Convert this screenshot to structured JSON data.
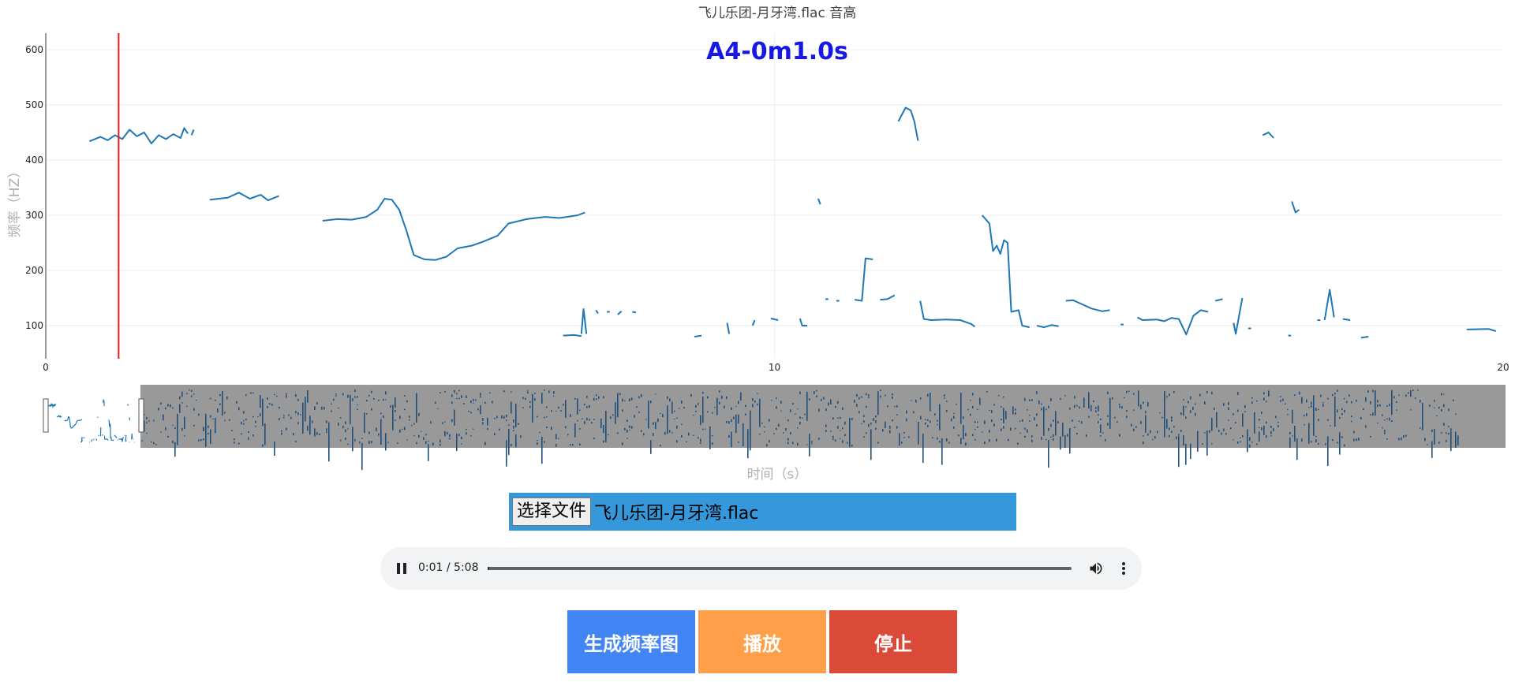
{
  "chart_data": {
    "type": "line",
    "title": "飞儿乐团-月牙湾.flac 音高",
    "current_note": "A4-0m1.0s",
    "xlabel": "时间（s）",
    "ylabel": "频率（HZ）",
    "xlim": [
      0,
      20
    ],
    "ylim": [
      40,
      630
    ],
    "x_ticks": [
      "0",
      "10",
      "20"
    ],
    "y_ticks": [
      "100",
      "200",
      "300",
      "400",
      "500",
      "600"
    ],
    "cursor_time": 1.0,
    "grid": true,
    "line_color": "#1f77b4",
    "cursor_color": "#e31a1c",
    "segments": [
      [
        [
          0.6,
          434
        ],
        [
          0.75,
          442
        ],
        [
          0.85,
          436
        ],
        [
          0.95,
          445
        ],
        [
          1.05,
          438
        ],
        [
          1.15,
          455
        ],
        [
          1.25,
          443
        ],
        [
          1.35,
          450
        ],
        [
          1.45,
          430
        ],
        [
          1.55,
          445
        ],
        [
          1.65,
          438
        ],
        [
          1.75,
          447
        ],
        [
          1.85,
          440
        ],
        [
          1.9,
          458
        ],
        [
          1.95,
          448
        ]
      ],
      [
        [
          2.0,
          445
        ],
        [
          2.03,
          455
        ]
      ],
      [
        [
          2.25,
          328
        ],
        [
          2.5,
          332
        ],
        [
          2.65,
          341
        ],
        [
          2.8,
          330
        ],
        [
          2.95,
          337
        ],
        [
          3.05,
          327
        ],
        [
          3.2,
          335
        ]
      ],
      [
        [
          3.8,
          290
        ],
        [
          4.0,
          293
        ],
        [
          4.2,
          292
        ],
        [
          4.4,
          297
        ],
        [
          4.55,
          310
        ],
        [
          4.65,
          330
        ],
        [
          4.75,
          328
        ],
        [
          4.85,
          310
        ],
        [
          4.95,
          272
        ],
        [
          5.05,
          228
        ],
        [
          5.2,
          220
        ],
        [
          5.35,
          219
        ],
        [
          5.5,
          225
        ],
        [
          5.65,
          240
        ],
        [
          5.85,
          245
        ],
        [
          6.0,
          252
        ],
        [
          6.2,
          263
        ],
        [
          6.35,
          285
        ],
        [
          6.6,
          293
        ],
        [
          6.85,
          297
        ],
        [
          7.05,
          295
        ],
        [
          7.3,
          300
        ],
        [
          7.4,
          305
        ]
      ],
      [
        [
          7.1,
          82
        ],
        [
          7.25,
          83
        ],
        [
          7.35,
          81
        ]
      ],
      [
        [
          7.35,
          85
        ],
        [
          7.38,
          130
        ],
        [
          7.42,
          85
        ]
      ],
      [
        [
          7.55,
          128
        ],
        [
          7.58,
          122
        ]
      ],
      [
        [
          7.7,
          125
        ]
      ],
      [
        [
          7.85,
          120
        ],
        [
          7.9,
          126
        ]
      ],
      [
        [
          8.05,
          125
        ],
        [
          8.1,
          124
        ]
      ],
      [
        [
          8.9,
          80
        ],
        [
          9.0,
          82
        ]
      ],
      [
        [
          9.35,
          105
        ],
        [
          9.38,
          85
        ]
      ],
      [
        [
          9.7,
          100
        ],
        [
          9.73,
          110
        ]
      ],
      [
        [
          9.95,
          113
        ],
        [
          10.05,
          110
        ]
      ],
      [
        [
          10.35,
          113
        ],
        [
          10.38,
          100
        ],
        [
          10.45,
          100
        ]
      ],
      [
        [
          10.6,
          330
        ],
        [
          10.63,
          320
        ]
      ],
      [
        [
          10.7,
          148
        ]
      ],
      [
        [
          10.85,
          145
        ]
      ],
      [
        [
          11.1,
          147
        ],
        [
          11.2,
          145
        ],
        [
          11.25,
          222
        ],
        [
          11.35,
          220
        ]
      ],
      [
        [
          11.45,
          147
        ],
        [
          11.55,
          148
        ],
        [
          11.65,
          155
        ]
      ],
      [
        [
          11.7,
          470
        ],
        [
          11.8,
          495
        ],
        [
          11.87,
          490
        ],
        [
          11.92,
          470
        ],
        [
          11.97,
          435
        ]
      ],
      [
        [
          12.0,
          145
        ],
        [
          12.05,
          112
        ],
        [
          12.15,
          110
        ],
        [
          12.35,
          111
        ],
        [
          12.55,
          110
        ],
        [
          12.7,
          103
        ],
        [
          12.75,
          98
        ]
      ],
      [
        [
          12.85,
          300
        ],
        [
          12.95,
          285
        ],
        [
          13.0,
          235
        ],
        [
          13.05,
          245
        ],
        [
          13.1,
          230
        ],
        [
          13.15,
          255
        ],
        [
          13.2,
          250
        ],
        [
          13.25,
          125
        ],
        [
          13.35,
          128
        ],
        [
          13.4,
          100
        ],
        [
          13.5,
          97
        ]
      ],
      [
        [
          13.6,
          100
        ],
        [
          13.7,
          97
        ],
        [
          13.8,
          101
        ],
        [
          13.9,
          99
        ]
      ],
      [
        [
          14.0,
          145
        ],
        [
          14.1,
          146
        ],
        [
          14.2,
          140
        ],
        [
          14.35,
          131
        ],
        [
          14.5,
          126
        ],
        [
          14.6,
          128
        ]
      ],
      [
        [
          14.75,
          102
        ]
      ],
      [
        [
          14.98,
          115
        ],
        [
          15.05,
          110
        ],
        [
          15.25,
          111
        ],
        [
          15.35,
          108
        ],
        [
          15.45,
          114
        ],
        [
          15.55,
          112
        ],
        [
          15.65,
          84
        ],
        [
          15.75,
          118
        ],
        [
          15.85,
          128
        ],
        [
          15.95,
          125
        ]
      ],
      [
        [
          16.05,
          145
        ],
        [
          16.15,
          148
        ]
      ],
      [
        [
          16.3,
          105
        ],
        [
          16.33,
          85
        ],
        [
          16.42,
          150
        ]
      ],
      [
        [
          16.5,
          95
        ]
      ],
      [
        [
          16.7,
          445
        ],
        [
          16.78,
          450
        ],
        [
          16.85,
          440
        ]
      ],
      [
        [
          17.05,
          82
        ]
      ],
      [
        [
          17.1,
          325
        ],
        [
          17.15,
          305
        ],
        [
          17.2,
          310
        ]
      ],
      [
        [
          17.45,
          110
        ]
      ],
      [
        [
          17.55,
          110
        ],
        [
          17.62,
          165
        ],
        [
          17.68,
          115
        ]
      ],
      [
        [
          17.8,
          112
        ],
        [
          17.9,
          110
        ]
      ],
      [
        [
          18.05,
          78
        ],
        [
          18.15,
          80
        ]
      ],
      [
        [
          19.5,
          93
        ],
        [
          19.8,
          94
        ],
        [
          19.9,
          90
        ]
      ]
    ]
  },
  "file": {
    "button_label": "选择文件",
    "file_name": "飞儿乐团-月牙湾.flac"
  },
  "audio": {
    "time_display": "0:01 / 5:08",
    "progress": 0.003
  },
  "buttons": {
    "generate": "生成频率图",
    "play": "播放",
    "stop": "停止"
  }
}
